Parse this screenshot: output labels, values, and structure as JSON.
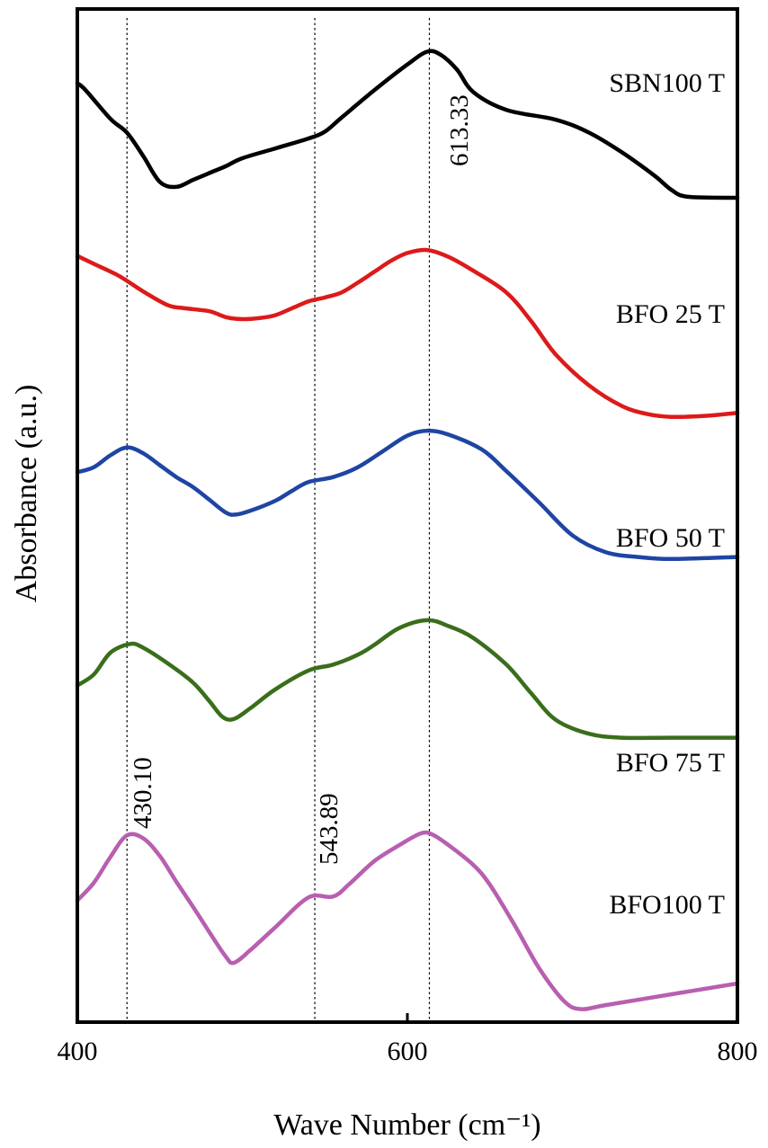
{
  "chart_data": {
    "type": "line",
    "xlabel": "Wave Number (cm⁻¹)",
    "ylabel": "Absorbance (a.u.)",
    "xlim": [
      400,
      800
    ],
    "x_ticks": [
      400,
      600,
      800
    ],
    "x_tick_labels": [
      "400",
      "600",
      "800"
    ],
    "ylim": [
      0,
      100
    ],
    "y_ticks": [],
    "grid": false,
    "legend": "labels beside each curve on the right",
    "reference_lines": [
      {
        "x": 430.1,
        "label": "430.10"
      },
      {
        "x": 543.89,
        "label": "543.89"
      },
      {
        "x": 613.33,
        "label": "613.33"
      }
    ],
    "series": [
      {
        "name": "SBN100 T",
        "color": "#000000",
        "points": [
          [
            400,
            94.3
          ],
          [
            405,
            93.6
          ],
          [
            420,
            90.7
          ],
          [
            430,
            89.3
          ],
          [
            440,
            86.9
          ],
          [
            450,
            84.3
          ],
          [
            460,
            83.8
          ],
          [
            470,
            84.5
          ],
          [
            480,
            85.2
          ],
          [
            490,
            85.9
          ],
          [
            500,
            86.7
          ],
          [
            520,
            87.7
          ],
          [
            540,
            88.7
          ],
          [
            550,
            89.4
          ],
          [
            560,
            90.8
          ],
          [
            580,
            93.6
          ],
          [
            600,
            96.2
          ],
          [
            612,
            97.5
          ],
          [
            620,
            97.2
          ],
          [
            630,
            95.7
          ],
          [
            640,
            93.4
          ],
          [
            660,
            91.6
          ],
          [
            690,
            90.6
          ],
          [
            710,
            89.3
          ],
          [
            730,
            87.3
          ],
          [
            750,
            84.9
          ],
          [
            760,
            83.5
          ],
          [
            770,
            82.8
          ],
          [
            800,
            82.7
          ]
        ]
      },
      {
        "name": "BFO 25 T",
        "color": "#dd1a1a",
        "points": [
          [
            400,
            76.8
          ],
          [
            410,
            76.0
          ],
          [
            425,
            74.8
          ],
          [
            440,
            73.2
          ],
          [
            455,
            71.8
          ],
          [
            465,
            71.5
          ],
          [
            480,
            71.2
          ],
          [
            490,
            70.6
          ],
          [
            500,
            70.4
          ],
          [
            510,
            70.5
          ],
          [
            520,
            70.8
          ],
          [
            530,
            71.5
          ],
          [
            540,
            72.2
          ],
          [
            550,
            72.6
          ],
          [
            560,
            73.1
          ],
          [
            570,
            74.1
          ],
          [
            580,
            75.2
          ],
          [
            590,
            76.3
          ],
          [
            600,
            77.1
          ],
          [
            612,
            77.4
          ],
          [
            625,
            76.7
          ],
          [
            640,
            75.3
          ],
          [
            660,
            73.1
          ],
          [
            675,
            70.2
          ],
          [
            690,
            66.8
          ],
          [
            710,
            63.7
          ],
          [
            730,
            61.6
          ],
          [
            745,
            60.8
          ],
          [
            760,
            60.5
          ],
          [
            780,
            60.6
          ],
          [
            800,
            60.9
          ]
        ]
      },
      {
        "name": "BFO 50 T",
        "color": "#1f45a3",
        "points": [
          [
            400,
            54.9
          ],
          [
            410,
            55.4
          ],
          [
            420,
            56.6
          ],
          [
            430,
            57.4
          ],
          [
            440,
            56.8
          ],
          [
            450,
            55.6
          ],
          [
            460,
            54.4
          ],
          [
            470,
            53.4
          ],
          [
            480,
            52.1
          ],
          [
            490,
            50.8
          ],
          [
            496,
            50.6
          ],
          [
            505,
            51.0
          ],
          [
            520,
            52.0
          ],
          [
            530,
            53.0
          ],
          [
            540,
            53.9
          ],
          [
            555,
            54.4
          ],
          [
            570,
            55.4
          ],
          [
            585,
            57.0
          ],
          [
            600,
            58.6
          ],
          [
            612,
            59.1
          ],
          [
            625,
            58.7
          ],
          [
            645,
            57.2
          ],
          [
            660,
            55.0
          ],
          [
            680,
            51.8
          ],
          [
            700,
            48.5
          ],
          [
            720,
            46.8
          ],
          [
            740,
            46.3
          ],
          [
            760,
            46.1
          ],
          [
            800,
            46.3
          ]
        ]
      },
      {
        "name": "BFO 75 T",
        "color": "#3a6e1b",
        "points": [
          [
            400,
            33.3
          ],
          [
            410,
            34.4
          ],
          [
            420,
            36.6
          ],
          [
            432,
            37.5
          ],
          [
            440,
            37.1
          ],
          [
            455,
            35.5
          ],
          [
            470,
            33.6
          ],
          [
            480,
            31.7
          ],
          [
            488,
            30.1
          ],
          [
            495,
            29.9
          ],
          [
            505,
            31.0
          ],
          [
            520,
            32.9
          ],
          [
            540,
            34.8
          ],
          [
            555,
            35.4
          ],
          [
            570,
            36.4
          ],
          [
            580,
            37.4
          ],
          [
            595,
            39.1
          ],
          [
            612,
            39.9
          ],
          [
            625,
            39.3
          ],
          [
            640,
            38.1
          ],
          [
            660,
            35.4
          ],
          [
            675,
            32.5
          ],
          [
            690,
            29.8
          ],
          [
            710,
            28.4
          ],
          [
            730,
            28.0
          ],
          [
            760,
            28.0
          ],
          [
            800,
            28.0
          ]
        ]
      },
      {
        "name": "BFO100 T",
        "color": "#b85fb0",
        "points": [
          [
            400,
            11.5
          ],
          [
            410,
            13.3
          ],
          [
            420,
            15.9
          ],
          [
            430,
            18.1
          ],
          [
            440,
            17.8
          ],
          [
            450,
            16.0
          ],
          [
            460,
            13.4
          ],
          [
            470,
            10.9
          ],
          [
            480,
            8.3
          ],
          [
            490,
            5.8
          ],
          [
            495,
            5.2
          ],
          [
            505,
            6.5
          ],
          [
            520,
            8.8
          ],
          [
            540,
            11.8
          ],
          [
            555,
            11.9
          ],
          [
            565,
            13.2
          ],
          [
            580,
            15.5
          ],
          [
            595,
            17.1
          ],
          [
            608,
            18.3
          ],
          [
            615,
            18.2
          ],
          [
            625,
            17.1
          ],
          [
            640,
            15.1
          ],
          [
            650,
            13.1
          ],
          [
            665,
            9.0
          ],
          [
            680,
            4.6
          ],
          [
            695,
            1.3
          ],
          [
            705,
            0.5
          ],
          [
            720,
            0.9
          ],
          [
            760,
            2.0
          ],
          [
            800,
            3.1
          ]
        ]
      }
    ]
  }
}
